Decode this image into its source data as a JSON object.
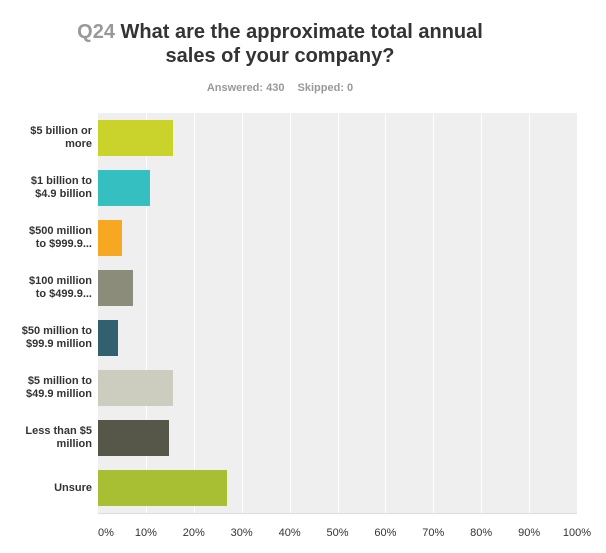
{
  "title": {
    "number": "Q24",
    "line1": "What are the approximate total annual",
    "line2": "sales of your company?"
  },
  "meta": {
    "answered": "Answered: 430",
    "skipped": "Skipped: 0"
  },
  "chart_data": {
    "type": "bar",
    "orientation": "horizontal",
    "categories": [
      [
        "$5 billion or",
        "more"
      ],
      [
        "$1 billion to",
        "$4.9 billion"
      ],
      [
        "$500 million",
        "to $999.9..."
      ],
      [
        "$100 million",
        "to $499.9..."
      ],
      [
        "$50 million to",
        "$99.9 million"
      ],
      [
        "$5 million to",
        "$49.9 million"
      ],
      [
        "Less than $5",
        "million"
      ],
      [
        "Unsure"
      ]
    ],
    "values": [
      15.6,
      10.9,
      5.1,
      7.4,
      4.2,
      15.6,
      14.9,
      27.0
    ],
    "colors": [
      "#c9d32c",
      "#35bfc1",
      "#f7a823",
      "#8c8c7a",
      "#33606f",
      "#cdcdbf",
      "#575749",
      "#a8be33"
    ],
    "xlim": [
      0,
      100
    ],
    "xticks": [
      "0%",
      "10%",
      "20%",
      "30%",
      "40%",
      "50%",
      "60%",
      "70%",
      "80%",
      "90%",
      "100%"
    ],
    "grid": true
  }
}
